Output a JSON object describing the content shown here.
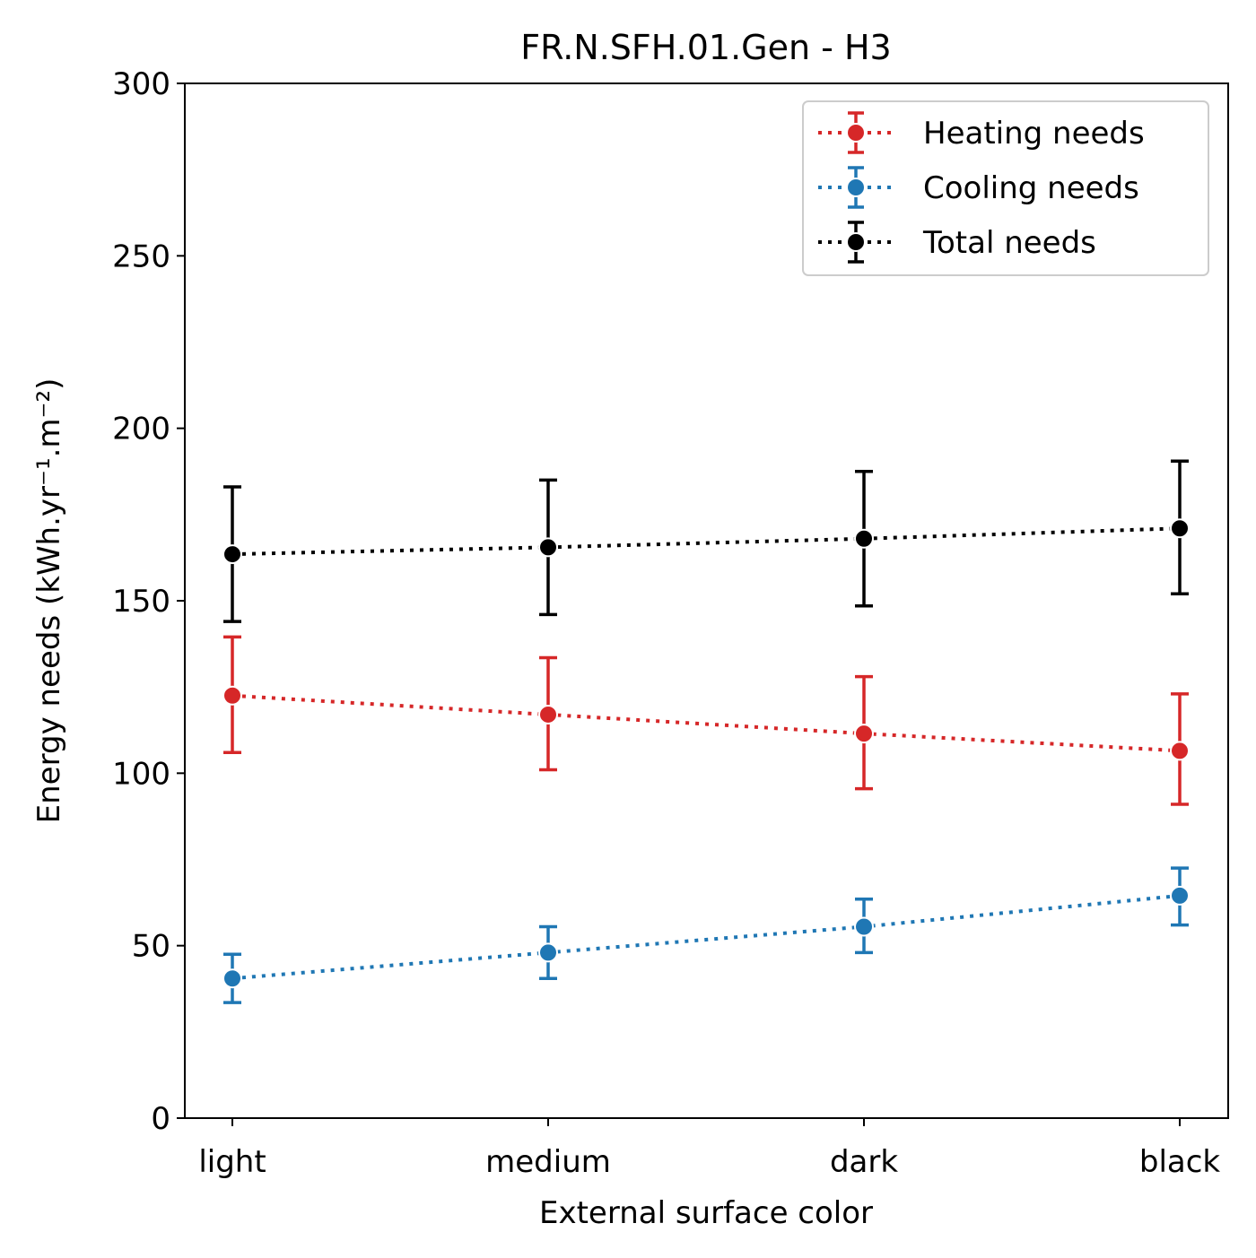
{
  "chart_data": {
    "type": "line",
    "title": "FR.N.SFH.01.Gen - H3",
    "xlabel": "External surface color",
    "ylabel": "Energy needs (kWh.yr⁻¹.m⁻²)",
    "categories": [
      "light",
      "medium",
      "dark",
      "black"
    ],
    "ylim": [
      0,
      300
    ],
    "yticks": [
      0,
      50,
      100,
      150,
      200,
      250,
      300
    ],
    "grid": false,
    "legend_position": "top-right",
    "line_style": "dotted",
    "error_bars": true,
    "series": [
      {
        "name": "Heating needs",
        "color": "#d62728",
        "values": [
          122.5,
          117,
          111.5,
          106.5
        ],
        "err_low": [
          106,
          101,
          95.5,
          91
        ],
        "err_high": [
          139.5,
          133.5,
          128,
          123
        ]
      },
      {
        "name": "Cooling needs",
        "color": "#1f77b4",
        "values": [
          40.5,
          48,
          55.5,
          64.5
        ],
        "err_low": [
          33.5,
          40.5,
          48,
          56
        ],
        "err_high": [
          47.5,
          55.5,
          63.5,
          72.5
        ]
      },
      {
        "name": "Total needs",
        "color": "#000000",
        "values": [
          163.5,
          165.5,
          168,
          171
        ],
        "err_low": [
          144,
          146,
          148.5,
          152
        ],
        "err_high": [
          183,
          185,
          187.5,
          190.5
        ]
      }
    ]
  }
}
